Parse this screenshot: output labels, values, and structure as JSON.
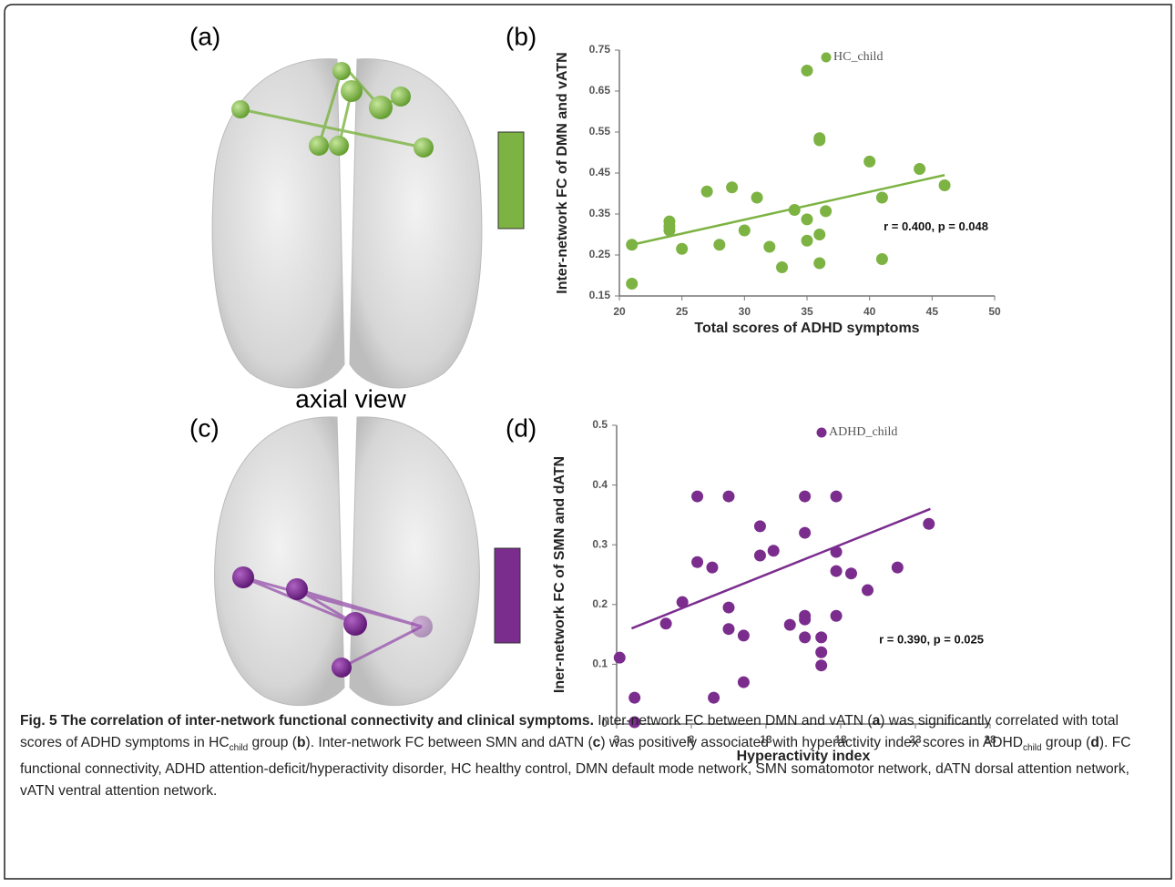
{
  "panels": [
    "(a)",
    "(b)",
    "(c)",
    "(d)"
  ],
  "view_label": "axial view",
  "chart_data": [
    {
      "type": "scatter",
      "title": null,
      "x_label": "Total scores of ADHD symptoms",
      "y_label": "Inter-network FC of DMN and vATN",
      "xlim": [
        20,
        50
      ],
      "xticks": [
        20,
        25,
        30,
        35,
        40,
        45,
        50
      ],
      "ylim": [
        0.15,
        0.75
      ],
      "yticks": [
        0.15,
        0.25,
        0.35,
        0.45,
        0.55,
        0.65,
        0.75
      ],
      "series": [
        {
          "name": "HC_child",
          "color": "#7cb342",
          "x": [
            21,
            21,
            24,
            24,
            24,
            25,
            27,
            28,
            29,
            30,
            31,
            32,
            33,
            34,
            35,
            35,
            35,
            36,
            36,
            36,
            36,
            36.5,
            40,
            41,
            41,
            44,
            46
          ],
          "values": [
            0.18,
            0.275,
            0.332,
            0.32,
            0.31,
            0.265,
            0.405,
            0.275,
            0.415,
            0.31,
            0.39,
            0.27,
            0.22,
            0.36,
            0.7,
            0.337,
            0.285,
            0.3,
            0.23,
            0.535,
            0.53,
            0.357,
            0.478,
            0.39,
            0.24,
            0.46,
            0.42
          ]
        }
      ],
      "trendline": {
        "x": [
          21,
          46
        ],
        "y": [
          0.275,
          0.445
        ]
      },
      "annotation": "r = 0.400, p = 0.048",
      "legend": "upper right"
    },
    {
      "type": "scatter",
      "title": null,
      "x_label": "Hyperactivity index",
      "y_label": "Iner-network FC of SMN and dATN",
      "xlim": [
        3,
        28
      ],
      "xticks": [
        3,
        8,
        13,
        18,
        23,
        28
      ],
      "ylim": [
        0,
        0.5
      ],
      "yticks": [
        0,
        0.1,
        0.2,
        0.3,
        0.4,
        0.5
      ],
      "series": [
        {
          "name": "ADHD_child",
          "color": "#7b2d8e",
          "x": [
            3.2,
            4.2,
            4.2,
            6.3,
            7.4,
            8.4,
            8.4,
            9.4,
            9.5,
            10.5,
            10.5,
            10.5,
            11.5,
            11.5,
            12.6,
            12.6,
            13.5,
            14.6,
            15.6,
            15.6,
            15.6,
            15.6,
            15.6,
            16.7,
            16.7,
            16.7,
            17.7,
            17.7,
            17.7,
            17.7,
            18.7,
            19.8,
            21.8,
            23.9
          ],
          "values": [
            0.111,
            0.044,
            0.003,
            0.168,
            0.204,
            0.381,
            0.271,
            0.262,
            0.044,
            0.381,
            0.195,
            0.159,
            0.148,
            0.07,
            0.331,
            0.282,
            0.29,
            0.166,
            0.381,
            0.32,
            0.181,
            0.175,
            0.145,
            0.145,
            0.12,
            0.098,
            0.381,
            0.288,
            0.256,
            0.181,
            0.252,
            0.224,
            0.262,
            0.335
          ]
        }
      ],
      "trendline": {
        "x": [
          4,
          24
        ],
        "y": [
          0.16,
          0.36
        ]
      },
      "annotation": "r = 0.390, p = 0.025",
      "legend": "upper right"
    }
  ],
  "caption": {
    "title": "Fig. 5 The correlation of inter-network functional connectivity and clinical symptoms.",
    "body": [
      "Inter-network FC between DMN and vATN (",
      "a",
      ") was significantly correlated with total scores of ADHD symptoms in HC",
      "child",
      " group (",
      "b",
      "). Inter-network FC between SMN and dATN (",
      "c",
      ") was positively associated with hyperactivity index scores in ADHD",
      "child",
      " group (",
      "d",
      "). FC functional connectivity, ADHD attention-deficit/hyperactivity disorder, HC healthy control, DMN default mode network, SMN somatomotor network, dATN dorsal attention network, vATN ventral attention network."
    ]
  }
}
